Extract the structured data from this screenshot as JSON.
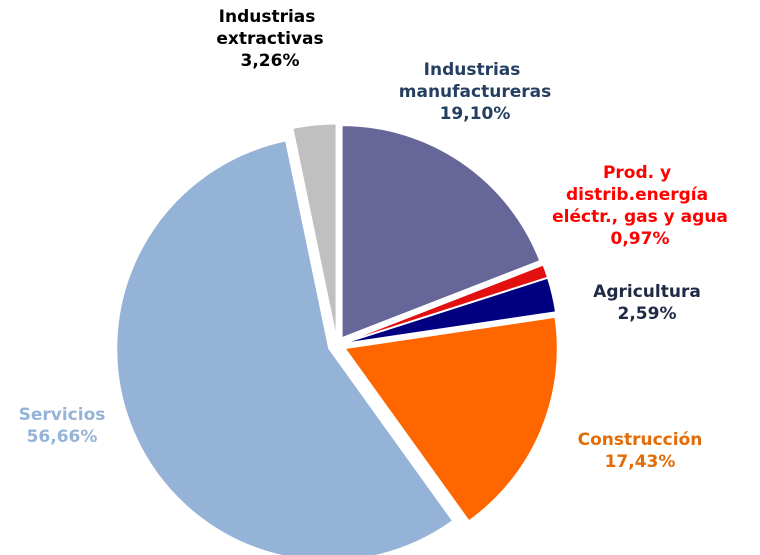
{
  "chart_data": {
    "type": "pie",
    "categories": [
      "Industrias manufactureras",
      "Prod. y distrib.energía eléctr., gas y agua",
      "Agricultura",
      "Construcción",
      "Servicios",
      "Industrias extractivas"
    ],
    "values": [
      19.1,
      0.97,
      2.59,
      17.43,
      56.66,
      3.26
    ],
    "value_labels": [
      "19,10%",
      "0,97%",
      "2,59%",
      "17,43%",
      "56,66%",
      "3,26%"
    ],
    "colors": [
      "#666699",
      "#e31010",
      "#000080",
      "#ff6600",
      "#95b3d7",
      "#c0c0c0"
    ],
    "label_colors": [
      "#243f60",
      "#ff0000",
      "#1f2a44",
      "#e36c09",
      "#95b3d7",
      "#000000"
    ]
  }
}
